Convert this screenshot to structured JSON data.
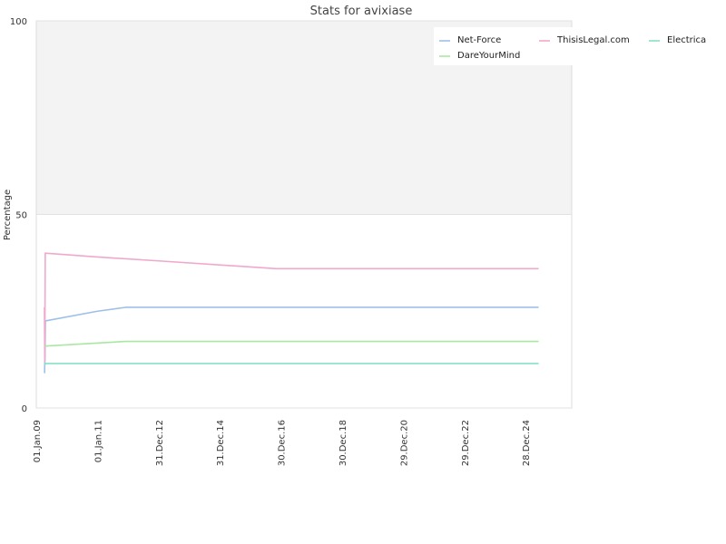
{
  "chart_data": {
    "type": "line",
    "title": "Stats for avixiase",
    "xlabel": "",
    "ylabel": "Percentage",
    "ylim": [
      0,
      100
    ],
    "y_ticks": [
      "0",
      "50",
      "100"
    ],
    "x_ticks": [
      "01.Jan.09",
      "01.Jan.11",
      "31.Dec.12",
      "31.Dec.14",
      "30.Dec.16",
      "30.Dec.18",
      "29.Dec.20",
      "29.Dec.22",
      "28.Dec.24"
    ],
    "x_range": [
      "2009-01-01",
      "2026-07-01"
    ],
    "grid": true,
    "shaded_band": [
      50,
      100
    ],
    "legend_position": "top-right",
    "series": [
      {
        "name": "Net-Force",
        "color": "#9ec0e8",
        "points": [
          [
            "2009-04-10",
            9
          ],
          [
            "2009-04-12",
            12
          ],
          [
            "2009-04-14",
            12
          ],
          [
            "2009-04-20",
            22.5
          ],
          [
            "2011-01-01",
            25
          ],
          [
            "2011-12-01",
            26
          ],
          [
            "2025-06-01",
            26
          ]
        ]
      },
      {
        "name": "ThisisLegal.com",
        "color": "#f0a8cc",
        "points": [
          [
            "2009-04-05",
            26
          ],
          [
            "2009-04-08",
            26
          ],
          [
            "2009-04-12",
            12
          ],
          [
            "2009-04-18",
            40
          ],
          [
            "2011-01-01",
            39
          ],
          [
            "2013-01-01",
            38
          ],
          [
            "2016-11-01",
            36
          ],
          [
            "2025-06-01",
            36
          ]
        ]
      },
      {
        "name": "Electrica",
        "color": "#88e0c8",
        "points": [
          [
            "2009-04-12",
            11
          ],
          [
            "2009-04-20",
            11.5
          ],
          [
            "2025-06-01",
            11.5
          ]
        ]
      },
      {
        "name": "DareYourMind",
        "color": "#a8e8a0",
        "points": [
          [
            "2009-04-12",
            16
          ],
          [
            "2009-04-20",
            16
          ],
          [
            "2011-12-01",
            17.2
          ],
          [
            "2025-06-01",
            17.2
          ]
        ]
      }
    ]
  }
}
